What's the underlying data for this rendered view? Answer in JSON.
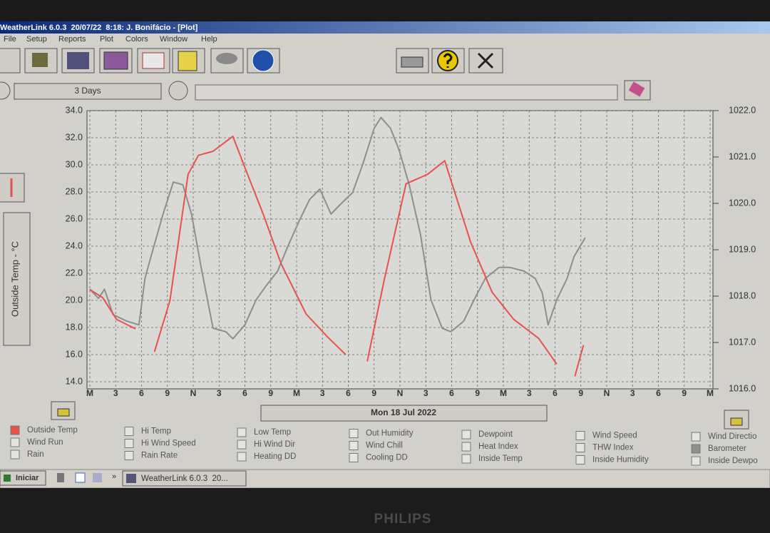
{
  "window_title": "WeatherLink 6.0.3  20/07/22  8:18: J. Bonifácio - [Plot]",
  "menu": [
    "File",
    "Setup",
    "Reports",
    "Plot",
    "Colors",
    "Window",
    "Help"
  ],
  "range_label": "3 Days",
  "chart_data": {
    "type": "line",
    "ylabel": "Outside Temp - °C",
    "xlabel": "Mon 18 Jul 2022",
    "xlim": [
      0,
      72
    ],
    "xticks": [
      {
        "value": 0,
        "label": "M"
      },
      3,
      6,
      9,
      {
        "value": 12,
        "label": "N"
      },
      {
        "value": 15,
        "label": "3"
      },
      {
        "value": 18,
        "label": "6"
      },
      {
        "value": 21,
        "label": "9"
      },
      {
        "value": 24,
        "label": "M"
      },
      {
        "value": 27,
        "label": "3"
      },
      {
        "value": 30,
        "label": "6"
      },
      {
        "value": 33,
        "label": "9"
      },
      {
        "value": 36,
        "label": "N"
      },
      {
        "value": 39,
        "label": "3"
      },
      {
        "value": 42,
        "label": "6"
      },
      {
        "value": 45,
        "label": "9"
      },
      {
        "value": 48,
        "label": "M"
      },
      {
        "value": 51,
        "label": "3"
      },
      {
        "value": 54,
        "label": "6"
      },
      {
        "value": 57,
        "label": "9"
      },
      {
        "value": 60,
        "label": "N"
      },
      {
        "value": 63,
        "label": "3"
      },
      {
        "value": 66,
        "label": "6"
      },
      {
        "value": 69,
        "label": "9"
      },
      {
        "value": 72,
        "label": "M"
      }
    ],
    "ylim": [
      14,
      34
    ],
    "yticks": [
      {
        "value": 14,
        "label": "14.0"
      },
      {
        "value": 16,
        "label": "16.0"
      },
      {
        "value": 18,
        "label": "18.0"
      },
      {
        "value": 20,
        "label": "20.0"
      },
      {
        "value": 22,
        "label": "22.0"
      },
      {
        "value": 24,
        "label": "24.0"
      },
      {
        "value": 26,
        "label": "26.0"
      },
      {
        "value": 28,
        "label": "28.0"
      },
      {
        "value": 30,
        "label": "30.0"
      },
      {
        "value": 32,
        "label": "32.0"
      },
      {
        "value": 34,
        "label": "34.0"
      }
    ],
    "y2lim": [
      1016,
      1022
    ],
    "y2ticks": [
      {
        "value": 1016,
        "label": "1016.0"
      },
      {
        "value": 1017,
        "label": "1017.0"
      },
      {
        "value": 1018,
        "label": "1018.0"
      },
      {
        "value": 1019,
        "label": "1019.0"
      },
      {
        "value": 1020,
        "label": "1020.0"
      },
      {
        "value": 1021,
        "label": "1021.0"
      },
      {
        "value": 1022,
        "label": "1022.0"
      }
    ],
    "grid": true,
    "series": [
      {
        "name": "Outside Temp",
        "color": "#e8524c",
        "x": [
          0,
          1.5,
          3.1,
          5.3,
          6.4,
          7.5,
          9.3,
          11.4,
          12.6,
          14.3,
          16.6,
          18,
          20.1,
          22.2,
          25.1,
          27.6,
          29.7,
          31,
          32.2,
          34.2,
          36.7,
          39.2,
          41.2,
          42.5,
          44.2,
          46.7,
          49.2,
          52.1,
          54.2,
          55.3,
          56.3,
          57.3
        ],
        "values": [
          20.8,
          20.2,
          18.6,
          17.9,
          null,
          16.2,
          20,
          29.3,
          30.7,
          31,
          32.1,
          29.8,
          26.4,
          22.7,
          19,
          17.3,
          16,
          null,
          15.5,
          21.6,
          28.6,
          29.3,
          30.3,
          27.7,
          24.3,
          20.6,
          18.6,
          17.2,
          15.3,
          null,
          14.4,
          16.7
        ]
      },
      {
        "name": "Barometer",
        "color": "#8c8f8c",
        "axis": "y2",
        "x": [
          0,
          1,
          1.7,
          2.7,
          4.3,
          5.7,
          6.4,
          7.2,
          8.5,
          9.7,
          10.8,
          11.8,
          13,
          14.3,
          15.8,
          16.6,
          18,
          19.3,
          20.5,
          21.8,
          23,
          24.3,
          25.5,
          26.7,
          28,
          29.2,
          30.5,
          31.7,
          33,
          33.8,
          34.9,
          35.9,
          37.1,
          38.4,
          39.6,
          40.9,
          41.9,
          43.4,
          44.6,
          45.9,
          47.5,
          48.7,
          50.4,
          51.7,
          52.5,
          53.2,
          54.2,
          55.4,
          56.2,
          57.5
        ],
        "values": [
          1018.15,
          1017.95,
          1018.15,
          1017.6,
          1017.46,
          1017.38,
          1018.38,
          1018.92,
          1019.77,
          1020.46,
          1020.4,
          1019.77,
          1018.54,
          1017.31,
          1017.23,
          1017.08,
          1017.38,
          1017.92,
          1018.23,
          1018.54,
          1019.08,
          1019.62,
          1020.08,
          1020.31,
          1019.77,
          1020,
          1020.23,
          1020.85,
          1021.62,
          1021.85,
          1021.62,
          1021.15,
          1020.38,
          1019.31,
          1017.92,
          1017.31,
          1017.23,
          1017.46,
          1017.92,
          1018.38,
          1018.62,
          1018.62,
          1018.54,
          1018.38,
          1018.08,
          1017.38,
          1017.92,
          1018.38,
          1018.85,
          1019.26
        ]
      }
    ]
  },
  "legend_parameters": [
    "Wind Run",
    "Rain",
    "Hi Temp",
    "Hi Wind Speed",
    "Rain Rate",
    "Low Temp",
    "Hi Wind Dir",
    "Heating DD",
    "Out Humidity",
    "Wind Chill",
    "Cooling DD",
    "Dewpoint",
    "Heat Index",
    "Inside Temp",
    "Wind Speed",
    "THW Index",
    "Inside Humidity",
    "Wind Directio",
    "Inside Dewpo"
  ],
  "taskbar": {
    "start": "Iniciar",
    "more": "»",
    "task": "WeatherLink 6.0.3  20..."
  },
  "monitor_brand": "PHILIPS"
}
